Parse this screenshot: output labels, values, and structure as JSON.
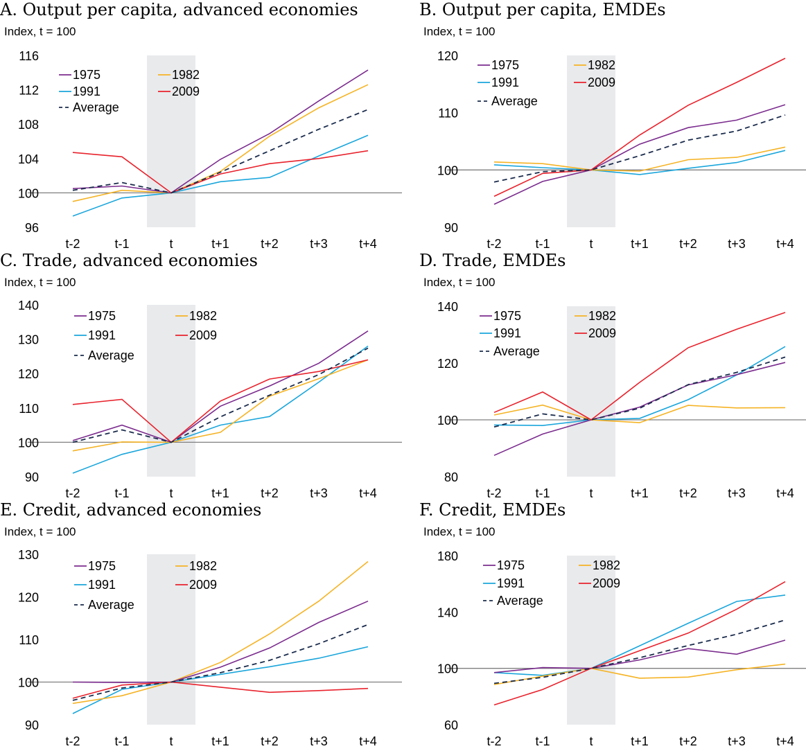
{
  "colors": {
    "1975": "#7B2C8E",
    "1982": "#F5B324",
    "1991": "#1AA6DC",
    "2009": "#E8222C",
    "Average": "#1A2B4C",
    "shade": "#E9EAEC",
    "baseline": "#7f7f7f"
  },
  "x_labels": [
    "t-2",
    "t-1",
    "t",
    "t+1",
    "t+2",
    "t+3",
    "t+4"
  ],
  "legend": [
    {
      "key": "1975",
      "label": "1975"
    },
    {
      "key": "1982",
      "label": "1982"
    },
    {
      "key": "1991",
      "label": "1991"
    },
    {
      "key": "2009",
      "label": "2009"
    },
    {
      "key": "Average",
      "label": "Average"
    }
  ],
  "chart_data": [
    {
      "type": "line",
      "title": "A. Output per capita, advanced economies",
      "ylabel": "Index, t = 100",
      "categories": [
        "t-2",
        "t-1",
        "t",
        "t+1",
        "t+2",
        "t+3",
        "t+4"
      ],
      "ylim": [
        96,
        116
      ],
      "yticks": [
        96,
        100,
        104,
        108,
        112,
        116
      ],
      "shaded": "t",
      "baseline": 100,
      "series": [
        {
          "name": "1975",
          "values": [
            100.5,
            100.8,
            100,
            103.9,
            106.9,
            110.7,
            114.3
          ]
        },
        {
          "name": "1982",
          "values": [
            99,
            100.3,
            100,
            102.5,
            106.6,
            109.9,
            112.6
          ]
        },
        {
          "name": "1991",
          "values": [
            97.3,
            99.4,
            100,
            101.3,
            101.8,
            104.3,
            106.7
          ]
        },
        {
          "name": "2009",
          "values": [
            104.7,
            104.2,
            100,
            102.2,
            103.4,
            104,
            104.9
          ]
        },
        {
          "name": "Average",
          "values": [
            100.3,
            101.2,
            100,
            102.4,
            104.9,
            107.4,
            109.7
          ]
        }
      ]
    },
    {
      "type": "line",
      "title": "B. Output per capita, EMDEs",
      "ylabel": "Index, t = 100",
      "categories": [
        "t-2",
        "t-1",
        "t",
        "t+1",
        "t+2",
        "t+3",
        "t+4"
      ],
      "ylim": [
        90,
        120
      ],
      "yticks": [
        90,
        100,
        110,
        120
      ],
      "shaded": "t",
      "baseline": 100,
      "series": [
        {
          "name": "1975",
          "values": [
            94,
            98,
            100,
            104.5,
            107.4,
            108.7,
            111.4
          ]
        },
        {
          "name": "1982",
          "values": [
            101.4,
            101.1,
            100,
            99.8,
            101.8,
            102.2,
            104
          ]
        },
        {
          "name": "1991",
          "values": [
            100.9,
            100.4,
            100,
            99.2,
            100.3,
            101.3,
            103.4
          ]
        },
        {
          "name": "2009",
          "values": [
            95.4,
            99.4,
            100,
            106.1,
            111.3,
            115.3,
            119.5
          ]
        },
        {
          "name": "Average",
          "values": [
            97.9,
            99.7,
            100,
            102.5,
            105.2,
            106.8,
            109.6
          ]
        }
      ]
    },
    {
      "type": "line",
      "title": "C. Trade, advanced economies",
      "ylabel": "Index, t = 100",
      "categories": [
        "t-2",
        "t-1",
        "t",
        "t+1",
        "t+2",
        "t+3",
        "t+4"
      ],
      "ylim": [
        90,
        140
      ],
      "yticks": [
        90,
        100,
        110,
        120,
        130,
        140
      ],
      "shaded": "t",
      "baseline": 100,
      "series": [
        {
          "name": "1975",
          "values": [
            100.5,
            105,
            100,
            110.5,
            116.4,
            123,
            132.4
          ]
        },
        {
          "name": "1982",
          "values": [
            97.5,
            100.1,
            100,
            102.9,
            113.4,
            118.5,
            124
          ]
        },
        {
          "name": "1991",
          "values": [
            91,
            96.5,
            100,
            105,
            107.5,
            117.5,
            128
          ]
        },
        {
          "name": "2009",
          "values": [
            111,
            112.5,
            100,
            112,
            118.4,
            120.6,
            124
          ]
        },
        {
          "name": "Average",
          "values": [
            100,
            103.6,
            100,
            107.4,
            113.7,
            119.7,
            127.4
          ]
        }
      ]
    },
    {
      "type": "line",
      "title": "D. Trade, EMDEs",
      "ylabel": "Index, t = 100",
      "categories": [
        "t-2",
        "t-1",
        "t",
        "t+1",
        "t+2",
        "t+3",
        "t+4"
      ],
      "ylim": [
        80,
        140
      ],
      "yticks": [
        80,
        100,
        120,
        140
      ],
      "shaded": "t",
      "baseline": 100,
      "series": [
        {
          "name": "1975",
          "values": [
            87.5,
            95,
            100,
            104.5,
            112.3,
            115.9,
            120.2
          ]
        },
        {
          "name": "1982",
          "values": [
            101.7,
            105.2,
            100,
            99,
            105.1,
            104.2,
            104.3
          ]
        },
        {
          "name": "1991",
          "values": [
            98.2,
            98,
            100,
            100.5,
            107.1,
            115.8,
            125.8
          ]
        },
        {
          "name": "2009",
          "values": [
            102.6,
            109.8,
            100,
            113.2,
            125.4,
            131.9,
            137.8
          ]
        },
        {
          "name": "Average",
          "values": [
            97.5,
            102.1,
            100,
            104.1,
            112.4,
            116.7,
            122.1
          ]
        }
      ]
    },
    {
      "type": "line",
      "title": "E. Credit, advanced economies",
      "ylabel": "Index, t = 100",
      "categories": [
        "t-2",
        "t-1",
        "t",
        "t+1",
        "t+2",
        "t+3",
        "t+4"
      ],
      "ylim": [
        90,
        130
      ],
      "yticks": [
        90,
        100,
        110,
        120,
        130
      ],
      "shaded": "t",
      "baseline": 100,
      "series": [
        {
          "name": "1975",
          "values": [
            100,
            99.9,
            100,
            103.5,
            108,
            114,
            119
          ]
        },
        {
          "name": "1982",
          "values": [
            95,
            96.8,
            100,
            104.6,
            111.3,
            119,
            128.3
          ]
        },
        {
          "name": "1991",
          "values": [
            92.6,
            98.3,
            100,
            101.8,
            103.6,
            105.6,
            108.3
          ]
        },
        {
          "name": "2009",
          "values": [
            96.2,
            99.3,
            100,
            98.8,
            97.6,
            98,
            98.5
          ]
        },
        {
          "name": "Average",
          "values": [
            95.7,
            98.6,
            100,
            102.2,
            105.1,
            109,
            113.5
          ]
        }
      ]
    },
    {
      "type": "line",
      "title": "F. Credit, EMDEs",
      "ylabel": "Index, t = 100",
      "categories": [
        "t-2",
        "t-1",
        "t",
        "t+1",
        "t+2",
        "t+3",
        "t+4"
      ],
      "ylim": [
        60,
        180
      ],
      "yticks": [
        60,
        100,
        140,
        180
      ],
      "shaded": "t",
      "baseline": 100,
      "series": [
        {
          "name": "1975",
          "values": [
            97,
            100.5,
            100,
            106,
            114,
            110,
            120
          ]
        },
        {
          "name": "1982",
          "values": [
            88.5,
            94.5,
            100,
            93,
            93.8,
            99,
            103
          ]
        },
        {
          "name": "1991",
          "values": [
            97,
            95,
            100,
            116,
            132,
            147.5,
            152
          ]
        },
        {
          "name": "2009",
          "values": [
            74,
            85,
            100,
            112.5,
            125,
            142,
            161.5
          ]
        },
        {
          "name": "Average",
          "values": [
            89.3,
            93.6,
            100,
            107.5,
            116.2,
            124.2,
            134.3
          ]
        }
      ]
    }
  ]
}
